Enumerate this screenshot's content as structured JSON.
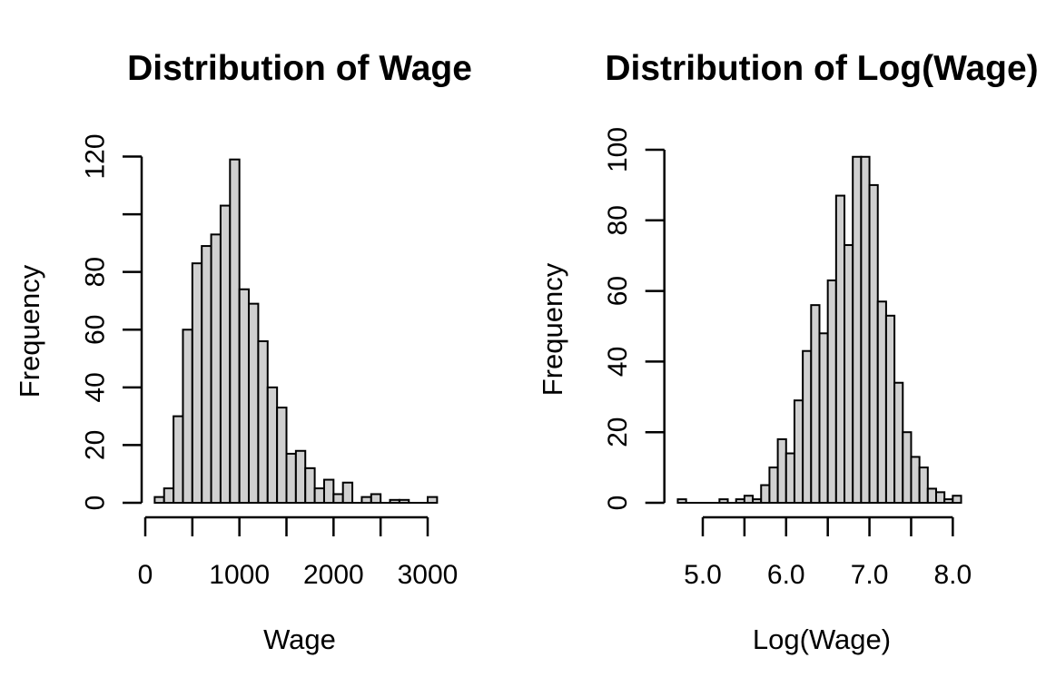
{
  "figure": {
    "background": "#ffffff",
    "bar_fill": "#d0d0d0",
    "bar_border": "#000000",
    "axis_color": "#000000",
    "text_color": "#000000"
  },
  "chart_data": [
    {
      "type": "bar",
      "subtype": "histogram",
      "title": "Distribution of Wage",
      "xlabel": "Wage",
      "ylabel": "Frequency",
      "bin_start": 100,
      "bin_width": 100,
      "counts": [
        2,
        5,
        30,
        60,
        83,
        89,
        93,
        103,
        119,
        74,
        69,
        56,
        40,
        33,
        17,
        18,
        12,
        5,
        8,
        3,
        7,
        0,
        2,
        3,
        0,
        1,
        1,
        0,
        0,
        2
      ],
      "xlim": [
        0,
        3100
      ],
      "ylim": [
        0,
        120
      ],
      "x_ticks": [
        0,
        500,
        1000,
        1500,
        2000,
        2500,
        3000
      ],
      "x_tick_label_values": [
        0,
        1000,
        2000,
        3000
      ],
      "x_tick_labels": [
        "0",
        "1000",
        "2000",
        "3000"
      ],
      "y_ticks": [
        0,
        20,
        40,
        60,
        80,
        100,
        120
      ],
      "y_tick_label_values": [
        0,
        20,
        40,
        60,
        80,
        120
      ],
      "y_tick_labels": [
        "0",
        "20",
        "40",
        "60",
        "80",
        "120"
      ],
      "grid": false,
      "legend": null
    },
    {
      "type": "bar",
      "subtype": "histogram",
      "title": "Distribution of Log(Wage)",
      "xlabel": "Log(Wage)",
      "ylabel": "Frequency",
      "bin_start": 4.7,
      "bin_width": 0.1,
      "counts": [
        1,
        0,
        0,
        0,
        0,
        1,
        0,
        1,
        2,
        1,
        5,
        10,
        18,
        14,
        29,
        43,
        56,
        48,
        63,
        87,
        73,
        98,
        98,
        90,
        57,
        53,
        34,
        20,
        13,
        10,
        4,
        3,
        1,
        2
      ],
      "xlim": [
        4.7,
        8.1
      ],
      "ylim": [
        0,
        100
      ],
      "x_ticks": [
        5.0,
        5.5,
        6.0,
        6.5,
        7.0,
        7.5,
        8.0
      ],
      "x_tick_label_values": [
        5.0,
        6.0,
        7.0,
        8.0
      ],
      "x_tick_labels": [
        "5.0",
        "6.0",
        "7.0",
        "8.0"
      ],
      "y_ticks": [
        0,
        20,
        40,
        60,
        80,
        100
      ],
      "y_tick_label_values": [
        0,
        20,
        40,
        60,
        80,
        100
      ],
      "y_tick_labels": [
        "0",
        "20",
        "40",
        "60",
        "80",
        "100"
      ],
      "grid": false,
      "legend": null
    }
  ]
}
